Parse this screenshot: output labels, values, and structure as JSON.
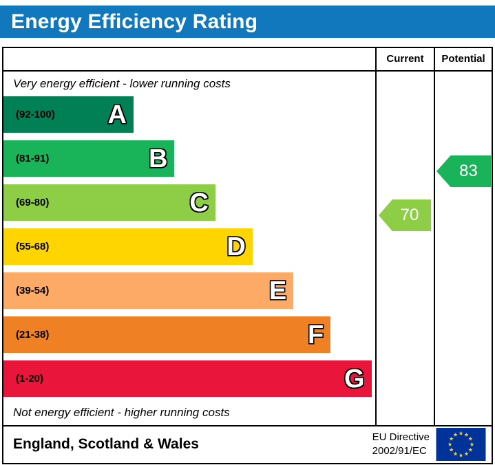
{
  "header": {
    "title": "Energy Efficiency Rating",
    "bg_color": "#1278be"
  },
  "columns": {
    "current_label": "Current",
    "potential_label": "Potential"
  },
  "notes": {
    "top": "Very energy efficient - lower running costs",
    "bottom": "Not energy efficient - higher running costs"
  },
  "bands": [
    {
      "letter": "A",
      "range": "(92-100)",
      "color": "#008054",
      "width_pct": 35
    },
    {
      "letter": "B",
      "range": "(81-91)",
      "color": "#19b459",
      "width_pct": 46
    },
    {
      "letter": "C",
      "range": "(69-80)",
      "color": "#8dce46",
      "width_pct": 57
    },
    {
      "letter": "D",
      "range": "(55-68)",
      "color": "#ffd500",
      "width_pct": 67
    },
    {
      "letter": "E",
      "range": "(39-54)",
      "color": "#fcaa65",
      "width_pct": 78
    },
    {
      "letter": "F",
      "range": "(21-38)",
      "color": "#ef8023",
      "width_pct": 88
    },
    {
      "letter": "G",
      "range": "(1-20)",
      "color": "#e9153b",
      "width_pct": 99
    }
  ],
  "ratings": {
    "current": {
      "value": "70",
      "band_index": 2,
      "arrow_color": "#8dce46"
    },
    "potential": {
      "value": "83",
      "band_index": 1,
      "arrow_color": "#19b459"
    }
  },
  "footer": {
    "region": "England, Scotland & Wales",
    "directive_line1": "EU Directive",
    "directive_line2": "2002/91/EC",
    "flag": {
      "field_color": "#003399",
      "star_color": "#ffcc00"
    }
  },
  "chart_data": {
    "type": "bar",
    "title": "Energy Efficiency Rating",
    "categories": [
      "A",
      "B",
      "C",
      "D",
      "E",
      "F",
      "G"
    ],
    "band_ranges": [
      "92-100",
      "81-91",
      "69-80",
      "55-68",
      "39-54",
      "21-38",
      "1-20"
    ],
    "bar_lengths_pct": [
      35,
      46,
      57,
      67,
      78,
      88,
      99
    ],
    "current_rating": 70,
    "current_band": "C",
    "potential_rating": 83,
    "potential_band": "B",
    "top_label": "Very energy efficient - lower running costs",
    "bottom_label": "Not energy efficient - higher running costs",
    "legend_position": "none",
    "grid": false
  }
}
